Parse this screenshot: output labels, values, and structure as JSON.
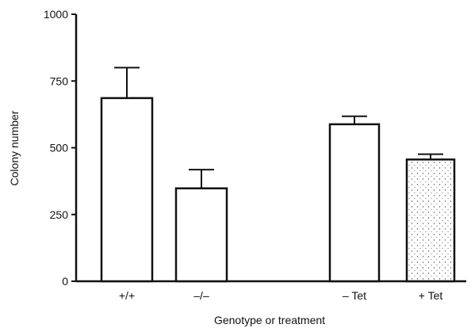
{
  "chart_data": {
    "type": "bar",
    "categories": [
      "+/+",
      "–/–",
      "– Tet",
      "+ Tet"
    ],
    "values": [
      686,
      348,
      588,
      456
    ],
    "errors": [
      114,
      70,
      30,
      20
    ],
    "patterns": [
      "none",
      "none",
      "none",
      "stipple"
    ],
    "xlabel": "Genotype or treatment",
    "ylabel": "Colony number",
    "ylim": [
      0,
      1000
    ],
    "yticks": [
      0,
      250,
      500,
      750,
      1000
    ],
    "grid": false,
    "legend": "none",
    "colors": {
      "bar_fill": "#ffffff",
      "stroke": "#111111"
    }
  }
}
